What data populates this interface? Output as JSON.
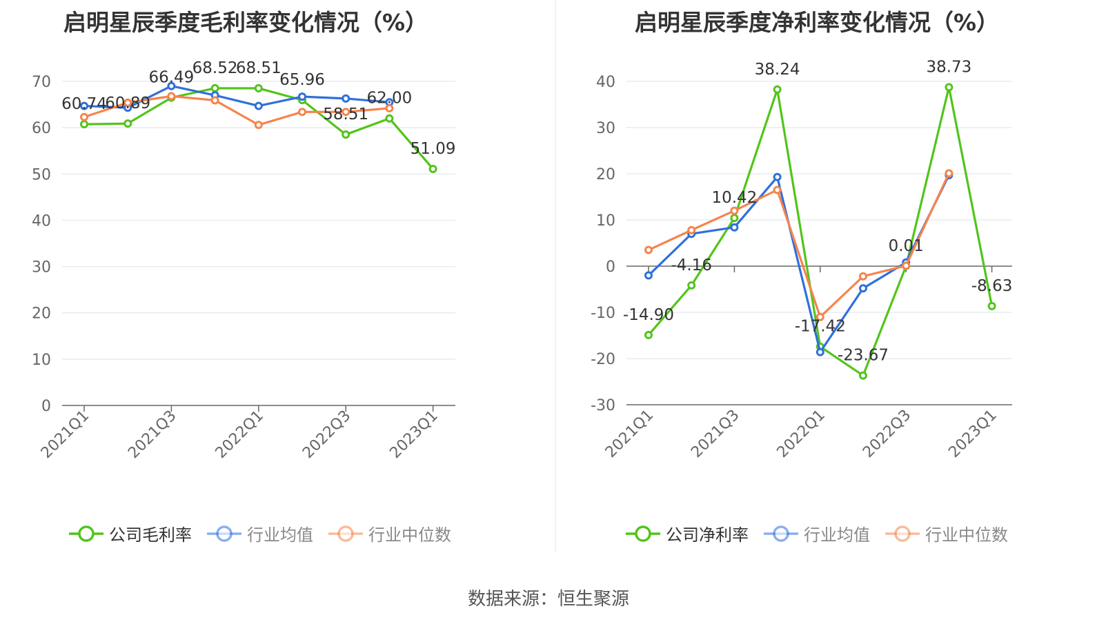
{
  "source": "数据来源：恒生聚源",
  "chart_data": [
    {
      "type": "line",
      "title": "启明星辰季度毛利率变化情况（%）",
      "categories": [
        "2021Q1",
        "2021Q2",
        "2021Q3",
        "2021Q4",
        "2022Q1",
        "2022Q2",
        "2022Q3",
        "2022Q4",
        "2023Q1"
      ],
      "x_tick_labels": [
        "2021Q1",
        "2021Q3",
        "2022Q1",
        "2022Q3",
        "2023Q1"
      ],
      "y_ticks": [
        "0",
        "10",
        "20",
        "30",
        "40",
        "50",
        "60",
        "70"
      ],
      "ylim": [
        0,
        70
      ],
      "grid": true,
      "legend_position": "bottom",
      "series": [
        {
          "name": "公司毛利率",
          "color": "#52c41a",
          "values": [
            60.74,
            60.89,
            66.49,
            68.52,
            68.51,
            65.96,
            58.51,
            62.0,
            51.09
          ],
          "labels": [
            "60.74",
            "60.89",
            "66.49",
            "68.52",
            "68.51",
            "65.96",
            "58.51",
            "62.00",
            "51.09"
          ]
        },
        {
          "name": "行业均值",
          "color": "#2f6fdc",
          "values": [
            64.7,
            64.3,
            69.0,
            67.0,
            64.7,
            66.7,
            66.3,
            65.5,
            null
          ]
        },
        {
          "name": "行业中位数",
          "color": "#f5844c",
          "values": [
            62.3,
            65.4,
            66.8,
            65.9,
            60.6,
            63.4,
            63.4,
            64.2,
            null
          ]
        }
      ]
    },
    {
      "type": "line",
      "title": "启明星辰季度净利率变化情况（%）",
      "categories": [
        "2021Q1",
        "2021Q2",
        "2021Q3",
        "2021Q4",
        "2022Q1",
        "2022Q2",
        "2022Q3",
        "2022Q4",
        "2023Q1"
      ],
      "x_tick_labels": [
        "2021Q1",
        "2021Q3",
        "2022Q1",
        "2022Q3",
        "2023Q1"
      ],
      "y_ticks": [
        "-30",
        "-20",
        "-10",
        "0",
        "10",
        "20",
        "30",
        "40"
      ],
      "ylim": [
        -30,
        40
      ],
      "grid": true,
      "legend_position": "bottom",
      "series": [
        {
          "name": "公司净利率",
          "color": "#52c41a",
          "values": [
            -14.9,
            -4.16,
            10.42,
            38.24,
            -17.42,
            -23.67,
            0.01,
            38.73,
            -8.63
          ],
          "labels": [
            "-14.90",
            "-4.16",
            "10.42",
            "38.24",
            "-17.42",
            "-23.67",
            "0.01",
            "38.73",
            "-8.63"
          ]
        },
        {
          "name": "行业均值",
          "color": "#2f6fdc",
          "values": [
            -2.0,
            7.0,
            8.4,
            19.3,
            -18.6,
            -4.8,
            0.8,
            19.7,
            null
          ]
        },
        {
          "name": "行业中位数",
          "color": "#f5844c",
          "values": [
            3.5,
            7.8,
            12.0,
            16.5,
            -11.0,
            -2.2,
            0.1,
            20.1,
            null
          ]
        }
      ]
    }
  ]
}
